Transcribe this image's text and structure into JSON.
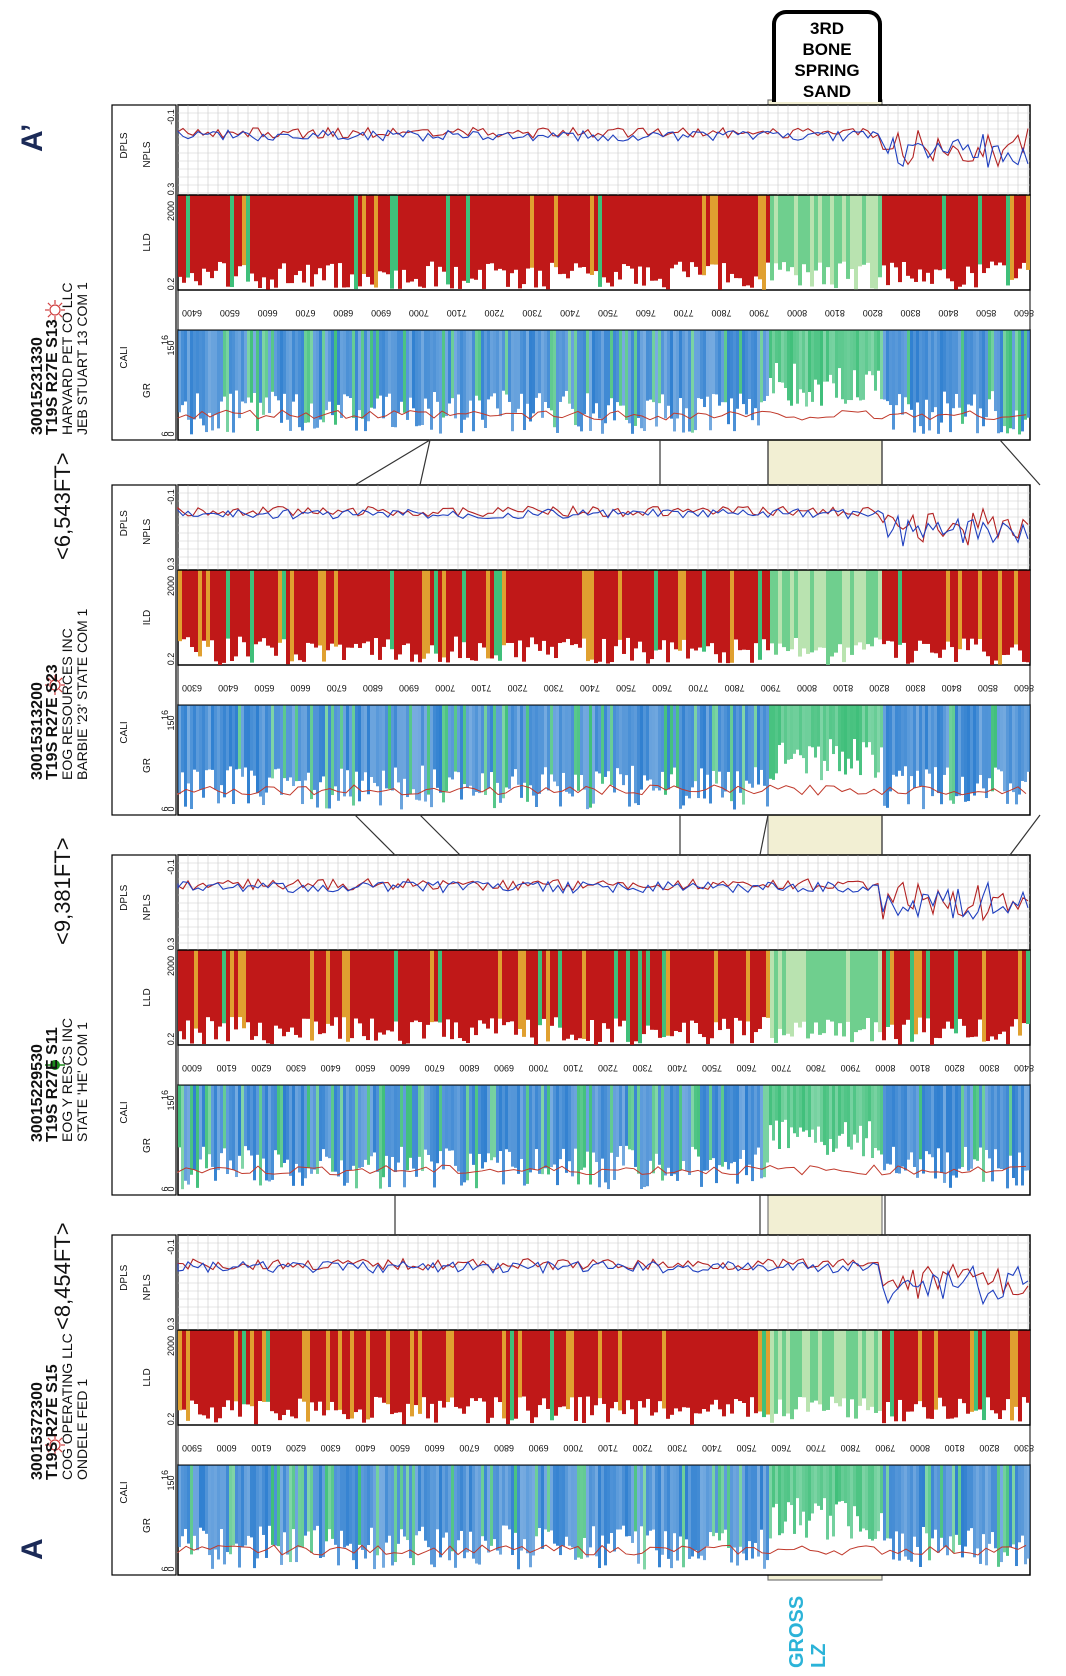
{
  "title_box": {
    "lines": [
      "3RD",
      "BONE",
      "SPRING",
      "SAND"
    ]
  },
  "end_labels": {
    "left": "A",
    "right": "A’"
  },
  "zone_label": {
    "line1": "GROSS",
    "line2": "LZ"
  },
  "colors": {
    "gr_blue": "#2f7fd0",
    "gr_green": "#3fbf7a",
    "res_red": "#c01818",
    "zone_fill": "#f2efd3",
    "zone_text": "#2bb3d8"
  },
  "wells": [
    {
      "api": "30015372300",
      "location": "T19S R27E S15",
      "operator": "COG OPERATING LLC",
      "name": "ONDELE FED 1",
      "symbol": "gas-icon",
      "track1": {
        "curve_a": "CALI",
        "a_min": "6",
        "a_max": "16",
        "curve_b": "GR",
        "b_min": "0",
        "b_max": "150"
      },
      "track2": {
        "curve": "LLD",
        "min": "0.2",
        "max": "2000"
      },
      "track3": {
        "curve_a": "DPLS",
        "curve_b": "NPLS",
        "min": "0.3",
        "max": "-0.1"
      },
      "depths": [
        "5900",
        "6000",
        "6100",
        "6200",
        "6300",
        "6400",
        "6500",
        "6600",
        "6700",
        "6800",
        "6900",
        "7000",
        "7100",
        "7200",
        "7300",
        "7400",
        "7500",
        "7600",
        "7700",
        "7800",
        "7900",
        "8000",
        "8100",
        "8200",
        "8300"
      ]
    },
    {
      "api": "30015229530",
      "location": "T19S R27E S11",
      "operator": "EOG Y RESCS INC",
      "name": "STATE 'HE' COM 1",
      "symbol": "oil-icon",
      "track1": {
        "curve_a": "CALI",
        "a_min": "6",
        "a_max": "16",
        "curve_b": "GR",
        "b_min": "0",
        "b_max": "150"
      },
      "track2": {
        "curve": "LLD",
        "min": "0.2",
        "max": "2000"
      },
      "track3": {
        "curve_a": "DPLS",
        "curve_b": "NPLS",
        "min": "0.3",
        "max": "-0.1"
      },
      "depths": [
        "6000",
        "6100",
        "6200",
        "6300",
        "6400",
        "6500",
        "6600",
        "6700",
        "6800",
        "6900",
        "7000",
        "7100",
        "7200",
        "7300",
        "7400",
        "7500",
        "7600",
        "7700",
        "7800",
        "7900",
        "8000",
        "8100",
        "8200",
        "8300",
        "8400"
      ]
    },
    {
      "api": "30015313200",
      "location": "T19S R27E S23",
      "operator": "EOG RESOURCES INC",
      "name": "BARBIE '23' STATE COM 1",
      "symbol": "gas-icon",
      "track1": {
        "curve_a": "CALI",
        "a_min": "6",
        "a_max": "16",
        "curve_b": "GR",
        "b_min": "0",
        "b_max": "150"
      },
      "track2": {
        "curve": "ILD",
        "min": "0.2",
        "max": "2000"
      },
      "track3": {
        "curve_a": "DPLS",
        "curve_b": "NPLS",
        "min": "0.3",
        "max": "-0.1"
      },
      "depths": [
        "6300",
        "6400",
        "6500",
        "6600",
        "6700",
        "6800",
        "6900",
        "7000",
        "7100",
        "7200",
        "7300",
        "7400",
        "7500",
        "7600",
        "7700",
        "7800",
        "7900",
        "8000",
        "8100",
        "8200",
        "8300",
        "8400",
        "8500",
        "8600"
      ]
    },
    {
      "api": "30015231330",
      "location": "T19S R27E S13",
      "operator": "HARVARD PET CO LLC",
      "name": "JEB STUART 13 COM 1",
      "symbol": "gas-icon",
      "track1": {
        "curve_a": "CALI",
        "a_min": "6",
        "a_max": "16",
        "curve_b": "GR",
        "b_min": "0",
        "b_max": "150"
      },
      "track2": {
        "curve": "LLD",
        "min": "0.2",
        "max": "2000"
      },
      "track3": {
        "curve_a": "DPLS",
        "curve_b": "NPLS",
        "min": "0.3",
        "max": "-0.1"
      },
      "depths": [
        "6400",
        "6500",
        "6600",
        "6700",
        "6800",
        "6900",
        "7000",
        "7100",
        "7200",
        "7300",
        "7400",
        "7500",
        "7600",
        "7700",
        "7800",
        "7900",
        "8000",
        "8100",
        "8200",
        "8300",
        "8400",
        "8500",
        "8600"
      ]
    }
  ],
  "spacings": [
    "<8,454FT>",
    "<9,381FT>",
    "<6,543FT>"
  ]
}
